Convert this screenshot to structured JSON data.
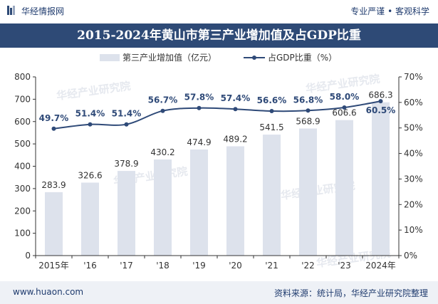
{
  "header": {
    "brand": "华经情报网",
    "tagline": "专业严谨 • 客观科学"
  },
  "footer": {
    "website": "www.huaon.com",
    "source": "资料来源：统计局，华经产业研究院整理"
  },
  "watermark": "华经产业研究院",
  "colors": {
    "bar": "#dde2ec",
    "line": "#2f4a78",
    "title_bg": "#2e4a76"
  },
  "chart_data": {
    "type": "bar",
    "title": "2015-2024年黄山市第三产业增加值及占GDP比重",
    "categories": [
      "2015年",
      "'16",
      "'17",
      "'18",
      "'19",
      "'20",
      "'21",
      "'22",
      "'23",
      "2024年"
    ],
    "series": [
      {
        "name": "第三产业增加值（亿元）",
        "type": "bar",
        "axis": "left",
        "values": [
          283.9,
          326.6,
          378.9,
          430.2,
          474.9,
          489.2,
          541.5,
          568.9,
          606.6,
          686.3
        ],
        "labels": [
          "283.9",
          "326.6",
          "378.9",
          "430.2",
          "474.9",
          "489.2",
          "541.5",
          "568.9",
          "606.6",
          "686.3"
        ]
      },
      {
        "name": "占GDP比重（%）",
        "type": "line",
        "axis": "right",
        "values": [
          49.7,
          51.4,
          51.4,
          56.7,
          57.8,
          57.4,
          56.6,
          56.8,
          58.0,
          60.5
        ],
        "labels": [
          "49.7%",
          "51.4%",
          "51.4%",
          "56.7%",
          "57.8%",
          "57.4%",
          "56.6%",
          "56.8%",
          "58.0%",
          "60.5%"
        ]
      }
    ],
    "y_left": {
      "range": [
        0,
        800
      ],
      "ticks": [
        0,
        100,
        200,
        300,
        400,
        500,
        600,
        700,
        800
      ],
      "tick_labels": [
        "0",
        "100",
        "200",
        "300",
        "400",
        "500",
        "600",
        "700",
        "800"
      ]
    },
    "y_right": {
      "range": [
        0,
        70
      ],
      "ticks": [
        0,
        10,
        20,
        30,
        40,
        50,
        60,
        70
      ],
      "tick_labels": [
        "0%",
        "10%",
        "20%",
        "30%",
        "40%",
        "50%",
        "60%",
        "70%"
      ]
    },
    "grid": false,
    "legend_position": "top-center"
  }
}
